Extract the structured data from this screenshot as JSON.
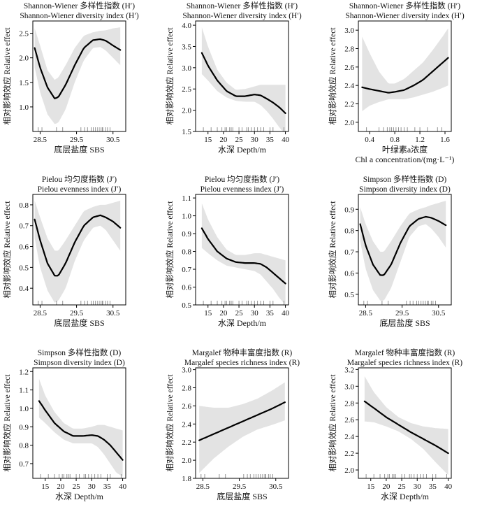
{
  "figure": {
    "y_axis_label": "相对影响效应 Relative effect"
  },
  "chart_data": [
    {
      "type": "line",
      "title": [
        "Shannon-Wiener 多样性指数 (H′)",
        "Shannon-Wiener diversity index (H′)"
      ],
      "xlabel": [
        "底层盐度 SBS"
      ],
      "ylabel": "相对影响效应 Relative effect",
      "xlim": [
        28.3,
        30.85
      ],
      "ylim": [
        0.5,
        2.75
      ],
      "xticks": [
        28.5,
        29.5,
        30.5
      ],
      "xtick_labels": [
        "28.5",
        "29.5",
        "30.5"
      ],
      "yticks": [
        1.0,
        1.5,
        2.0,
        2.5
      ],
      "ytick_labels": [
        "1.0",
        "1.5",
        "2.0",
        "2.5"
      ],
      "x": [
        28.35,
        28.5,
        28.7,
        28.9,
        29.0,
        29.2,
        29.45,
        29.7,
        29.95,
        30.15,
        30.3,
        30.5,
        30.7
      ],
      "y": [
        2.2,
        1.8,
        1.4,
        1.17,
        1.2,
        1.45,
        1.85,
        2.2,
        2.36,
        2.38,
        2.35,
        2.25,
        2.16
      ],
      "ci_lower": [
        1.8,
        1.3,
        0.85,
        0.65,
        0.68,
        0.95,
        1.5,
        1.95,
        2.2,
        2.22,
        2.15,
        2.0,
        1.85
      ],
      "ci_upper": [
        2.6,
        2.25,
        1.75,
        1.55,
        1.6,
        1.85,
        2.2,
        2.45,
        2.52,
        2.55,
        2.56,
        2.6,
        2.62
      ],
      "rug": [
        28.45,
        28.55,
        28.95,
        29.12,
        29.62,
        29.72,
        29.8,
        29.9,
        29.96,
        30.02,
        30.08,
        30.14,
        30.2,
        30.22,
        30.3,
        30.35,
        30.42
      ]
    },
    {
      "type": "line",
      "title": [
        "Shannon-Wiener 多样性指数 (H′)",
        "Shannon-Wiener diversity index (H′)"
      ],
      "xlabel": [
        "水深 Depth/m"
      ],
      "ylabel": "相对影响效应 Relative effect",
      "xlim": [
        11,
        41
      ],
      "ylim": [
        1.5,
        4.1
      ],
      "xticks": [
        15,
        20,
        25,
        30,
        35,
        40
      ],
      "xtick_labels": [
        "15",
        "20",
        "25",
        "30",
        "35",
        "40"
      ],
      "yticks": [
        1.5,
        2.0,
        2.5,
        3.0,
        3.5,
        4.0
      ],
      "ytick_labels": [
        "1.5",
        "2.0",
        "2.5",
        "3.0",
        "3.5",
        "4.0"
      ],
      "x": [
        13,
        15,
        18,
        21,
        24,
        27,
        30,
        32,
        34,
        36,
        38,
        40
      ],
      "y": [
        3.35,
        3.05,
        2.7,
        2.45,
        2.33,
        2.33,
        2.37,
        2.35,
        2.27,
        2.18,
        2.07,
        1.93
      ],
      "ci_lower": [
        2.85,
        2.7,
        2.45,
        2.3,
        2.22,
        2.2,
        2.2,
        2.12,
        1.98,
        1.8,
        1.6,
        1.42
      ],
      "ci_upper": [
        3.95,
        3.5,
        2.95,
        2.65,
        2.48,
        2.5,
        2.56,
        2.6,
        2.6,
        2.6,
        2.6,
        2.6
      ],
      "rug": [
        13.5,
        16,
        18,
        19.5,
        20.5,
        21,
        22,
        22.5,
        23,
        25,
        26,
        27.5,
        28,
        29,
        30,
        31,
        32,
        33,
        35,
        36,
        39.5
      ]
    },
    {
      "type": "line",
      "title": [
        "Shannon-Wiener 多样性指数 (H′)",
        "Shannon-Wiener diversity index (H′)"
      ],
      "xlabel": [
        "叶绿素a浓度",
        "Chl a concentration/(mg·L⁻¹)"
      ],
      "ylabel": "相对影响效应 Relative effect",
      "xlim": [
        0.22,
        1.7
      ],
      "ylim": [
        1.9,
        3.1
      ],
      "xticks": [
        0.4,
        0.8,
        1.2,
        1.6
      ],
      "xtick_labels": [
        "0.4",
        "0.8",
        "1.2",
        "1.6"
      ],
      "yticks": [
        2.0,
        2.2,
        2.4,
        2.6,
        2.8,
        3.0
      ],
      "ytick_labels": [
        "2.0",
        "2.2",
        "2.4",
        "2.6",
        "2.8",
        "3.0"
      ],
      "x": [
        0.28,
        0.4,
        0.55,
        0.7,
        0.8,
        0.95,
        1.1,
        1.25,
        1.4,
        1.55,
        1.65
      ],
      "y": [
        2.38,
        2.36,
        2.34,
        2.32,
        2.33,
        2.35,
        2.4,
        2.46,
        2.55,
        2.64,
        2.7
      ],
      "ci_lower": [
        2.12,
        2.18,
        2.22,
        2.25,
        2.25,
        2.25,
        2.27,
        2.3,
        2.33,
        2.37,
        2.4
      ],
      "ci_upper": [
        2.93,
        2.75,
        2.55,
        2.42,
        2.42,
        2.47,
        2.56,
        2.65,
        2.78,
        2.92,
        3.02
      ],
      "rug": [
        0.35,
        0.55,
        0.62,
        0.68,
        0.72,
        0.75,
        0.78,
        0.82,
        0.86,
        0.9,
        0.95,
        1.0,
        1.12,
        1.2,
        1.32,
        1.48,
        1.55
      ]
    },
    {
      "type": "line",
      "title": [
        "Pielou 均匀度指数 (J′)",
        "Pielou evenness index (J′)"
      ],
      "xlabel": [
        "底层盐度 SBS"
      ],
      "ylabel": "相对影响效应 Relative effect",
      "xlim": [
        28.3,
        30.85
      ],
      "ylim": [
        0.32,
        0.85
      ],
      "xticks": [
        28.5,
        29.5,
        30.5
      ],
      "xtick_labels": [
        "28.5",
        "29.5",
        "30.5"
      ],
      "yticks": [
        0.4,
        0.5,
        0.6,
        0.7,
        0.8
      ],
      "ytick_labels": [
        "0.4",
        "0.5",
        "0.6",
        "0.7",
        "0.8"
      ],
      "x": [
        28.35,
        28.5,
        28.7,
        28.9,
        29.0,
        29.2,
        29.45,
        29.7,
        29.95,
        30.15,
        30.3,
        30.5,
        30.7
      ],
      "y": [
        0.73,
        0.63,
        0.52,
        0.46,
        0.46,
        0.52,
        0.62,
        0.7,
        0.74,
        0.75,
        0.74,
        0.72,
        0.69
      ],
      "ci_lower": [
        0.64,
        0.5,
        0.39,
        0.33,
        0.34,
        0.4,
        0.53,
        0.63,
        0.69,
        0.7,
        0.68,
        0.63,
        0.58
      ],
      "ci_upper": [
        0.82,
        0.74,
        0.64,
        0.58,
        0.58,
        0.63,
        0.7,
        0.77,
        0.79,
        0.8,
        0.8,
        0.81,
        0.82
      ],
      "rug": [
        28.45,
        28.55,
        28.95,
        29.12,
        29.62,
        29.72,
        29.8,
        29.9,
        29.96,
        30.02,
        30.08,
        30.14,
        30.2,
        30.22,
        30.3,
        30.35,
        30.42
      ]
    },
    {
      "type": "line",
      "title": [
        "Pielou 均匀度指数 (J′)",
        "Pielou evenness index (J′)"
      ],
      "xlabel": [
        "水深 Depth/m"
      ],
      "ylabel": "相对影响效应 Relative effect",
      "xlim": [
        11,
        41
      ],
      "ylim": [
        0.5,
        1.12
      ],
      "xticks": [
        15,
        20,
        25,
        30,
        35,
        40
      ],
      "xtick_labels": [
        "15",
        "20",
        "25",
        "30",
        "35",
        "40"
      ],
      "yticks": [
        0.5,
        0.6,
        0.7,
        0.8,
        0.9,
        1.0,
        1.1
      ],
      "ytick_labels": [
        "0.5",
        "0.6",
        "0.7",
        "0.8",
        "0.9",
        "1.0",
        "1.1"
      ],
      "x": [
        13,
        15,
        18,
        21,
        24,
        27,
        30,
        32,
        34,
        36,
        38,
        40
      ],
      "y": [
        0.93,
        0.87,
        0.8,
        0.76,
        0.74,
        0.735,
        0.735,
        0.73,
        0.71,
        0.68,
        0.65,
        0.62
      ],
      "ci_lower": [
        0.82,
        0.79,
        0.75,
        0.72,
        0.71,
        0.7,
        0.69,
        0.67,
        0.63,
        0.59,
        0.54,
        0.5
      ],
      "ci_upper": [
        1.07,
        0.98,
        0.88,
        0.81,
        0.78,
        0.78,
        0.79,
        0.79,
        0.78,
        0.77,
        0.76,
        0.75
      ],
      "rug": [
        13.5,
        16,
        18,
        19.5,
        20.5,
        21,
        22,
        22.5,
        23,
        25,
        26,
        27.5,
        28,
        29,
        30,
        31,
        32,
        33,
        35,
        36,
        39.5
      ]
    },
    {
      "type": "line",
      "title": [
        "Simpson 多样性指数 (D)",
        "Simpson diversity index (D)"
      ],
      "xlabel": [
        "底层盐度 SBS"
      ],
      "ylabel": "相对影响效应 Relative effect",
      "xlim": [
        28.3,
        30.85
      ],
      "ylim": [
        0.45,
        0.97
      ],
      "xticks": [
        28.5,
        29.5,
        30.5
      ],
      "xtick_labels": [
        "28.5",
        "29.5",
        "30.5"
      ],
      "yticks": [
        0.5,
        0.6,
        0.7,
        0.8,
        0.9
      ],
      "ytick_labels": [
        "0.5",
        "0.6",
        "0.7",
        "0.8",
        "0.9"
      ],
      "x": [
        28.35,
        28.5,
        28.7,
        28.9,
        29.0,
        29.2,
        29.45,
        29.7,
        29.95,
        30.15,
        30.3,
        30.5,
        30.7
      ],
      "y": [
        0.83,
        0.73,
        0.64,
        0.59,
        0.59,
        0.64,
        0.74,
        0.82,
        0.855,
        0.865,
        0.86,
        0.845,
        0.825
      ],
      "ci_lower": [
        0.75,
        0.62,
        0.52,
        0.47,
        0.47,
        0.53,
        0.65,
        0.77,
        0.82,
        0.83,
        0.81,
        0.77,
        0.72
      ],
      "ci_upper": [
        0.91,
        0.83,
        0.75,
        0.7,
        0.7,
        0.75,
        0.82,
        0.88,
        0.9,
        0.91,
        0.92,
        0.93,
        0.94
      ],
      "rug": [
        28.45,
        28.55,
        28.95,
        29.12,
        29.62,
        29.72,
        29.8,
        29.9,
        29.96,
        30.02,
        30.08,
        30.14,
        30.2,
        30.22,
        30.3,
        30.35,
        30.42
      ]
    },
    {
      "type": "line",
      "title": [
        "Simpson 多样性指数 (D)",
        "Simpson diversity index (D)"
      ],
      "xlabel": [
        "水深 Depth/m"
      ],
      "ylabel": "相对影响效应 Relative effect",
      "xlim": [
        11,
        41
      ],
      "ylim": [
        0.62,
        1.22
      ],
      "xticks": [
        15,
        20,
        25,
        30,
        35,
        40
      ],
      "xtick_labels": [
        "15",
        "20",
        "25",
        "30",
        "35",
        "40"
      ],
      "yticks": [
        0.7,
        0.8,
        0.9,
        1.0,
        1.1,
        1.2
      ],
      "ytick_labels": [
        "0.7",
        "0.8",
        "0.9",
        "1.0",
        "1.1",
        "1.2"
      ],
      "x": [
        13,
        15,
        18,
        21,
        24,
        27,
        30,
        32,
        34,
        36,
        38,
        40
      ],
      "y": [
        1.04,
        0.99,
        0.92,
        0.875,
        0.85,
        0.85,
        0.855,
        0.85,
        0.83,
        0.8,
        0.76,
        0.72
      ],
      "ci_lower": [
        0.95,
        0.92,
        0.87,
        0.83,
        0.81,
        0.81,
        0.81,
        0.79,
        0.75,
        0.7,
        0.65,
        0.63
      ],
      "ci_upper": [
        1.16,
        1.07,
        0.98,
        0.92,
        0.89,
        0.89,
        0.9,
        0.91,
        0.91,
        0.9,
        0.89,
        0.88
      ],
      "rug": [
        13.5,
        16,
        18,
        19.5,
        20.5,
        21,
        22,
        22.5,
        23,
        25,
        26,
        27.5,
        28,
        29,
        30,
        31,
        32,
        33,
        35,
        36,
        39.5
      ]
    },
    {
      "type": "line",
      "title": [
        "Margalef 物种丰富度指数 (R)",
        "Margalef species richness index (R)"
      ],
      "xlabel": [
        "底层盐度 SBS"
      ],
      "ylabel": "相对影响效应 Relative effect",
      "xlim": [
        28.3,
        30.85
      ],
      "ylim": [
        1.8,
        3.02
      ],
      "xticks": [
        28.5,
        29.5,
        30.5
      ],
      "xtick_labels": [
        "28.5",
        "29.5",
        "30.5"
      ],
      "yticks": [
        1.8,
        2.0,
        2.2,
        2.4,
        2.6,
        2.8,
        3.0
      ],
      "ytick_labels": [
        "1.8",
        "2.0",
        "2.2",
        "2.4",
        "2.6",
        "2.8",
        "3.0"
      ],
      "x": [
        28.4,
        28.8,
        29.2,
        29.6,
        30.0,
        30.4,
        30.75
      ],
      "y": [
        2.22,
        2.29,
        2.36,
        2.43,
        2.5,
        2.57,
        2.64
      ],
      "ci_lower": [
        1.86,
        2.02,
        2.15,
        2.26,
        2.34,
        2.39,
        2.44
      ],
      "ci_upper": [
        2.6,
        2.58,
        2.58,
        2.62,
        2.68,
        2.77,
        2.86
      ],
      "rug": [
        28.45,
        28.55,
        28.95,
        29.12,
        29.62,
        29.72,
        29.8,
        29.9,
        29.96,
        30.02,
        30.08,
        30.14,
        30.2,
        30.22,
        30.3,
        30.35,
        30.42
      ]
    },
    {
      "type": "line",
      "title": [
        "Margalef 物种丰富度指数 (R)",
        "Margalef species richness index (R)"
      ],
      "xlabel": [
        "水深 Depth/m"
      ],
      "ylabel": "相对影响效应 Relative effect",
      "xlim": [
        11,
        41
      ],
      "ylim": [
        1.9,
        3.22
      ],
      "xticks": [
        15,
        20,
        25,
        30,
        35,
        40
      ],
      "xtick_labels": [
        "15",
        "20",
        "25",
        "30",
        "35",
        "40"
      ],
      "yticks": [
        2.0,
        2.2,
        2.4,
        2.6,
        2.8,
        3.0,
        3.2
      ],
      "ytick_labels": [
        "2.0",
        "2.2",
        "2.4",
        "2.6",
        "2.8",
        "3.0",
        "3.2"
      ],
      "x": [
        13,
        16,
        20,
        24,
        28,
        32,
        36,
        40
      ],
      "y": [
        2.82,
        2.74,
        2.63,
        2.54,
        2.45,
        2.37,
        2.29,
        2.2
      ],
      "ci_lower": [
        2.58,
        2.57,
        2.52,
        2.46,
        2.37,
        2.25,
        2.09,
        1.94
      ],
      "ci_upper": [
        3.12,
        2.93,
        2.75,
        2.63,
        2.56,
        2.52,
        2.5,
        2.49
      ],
      "rug": [
        13.5,
        16,
        18,
        19.5,
        20.5,
        21,
        22,
        22.5,
        23,
        25,
        26,
        27.5,
        28,
        29,
        30,
        31,
        32,
        33,
        35,
        36,
        39.5
      ]
    }
  ]
}
